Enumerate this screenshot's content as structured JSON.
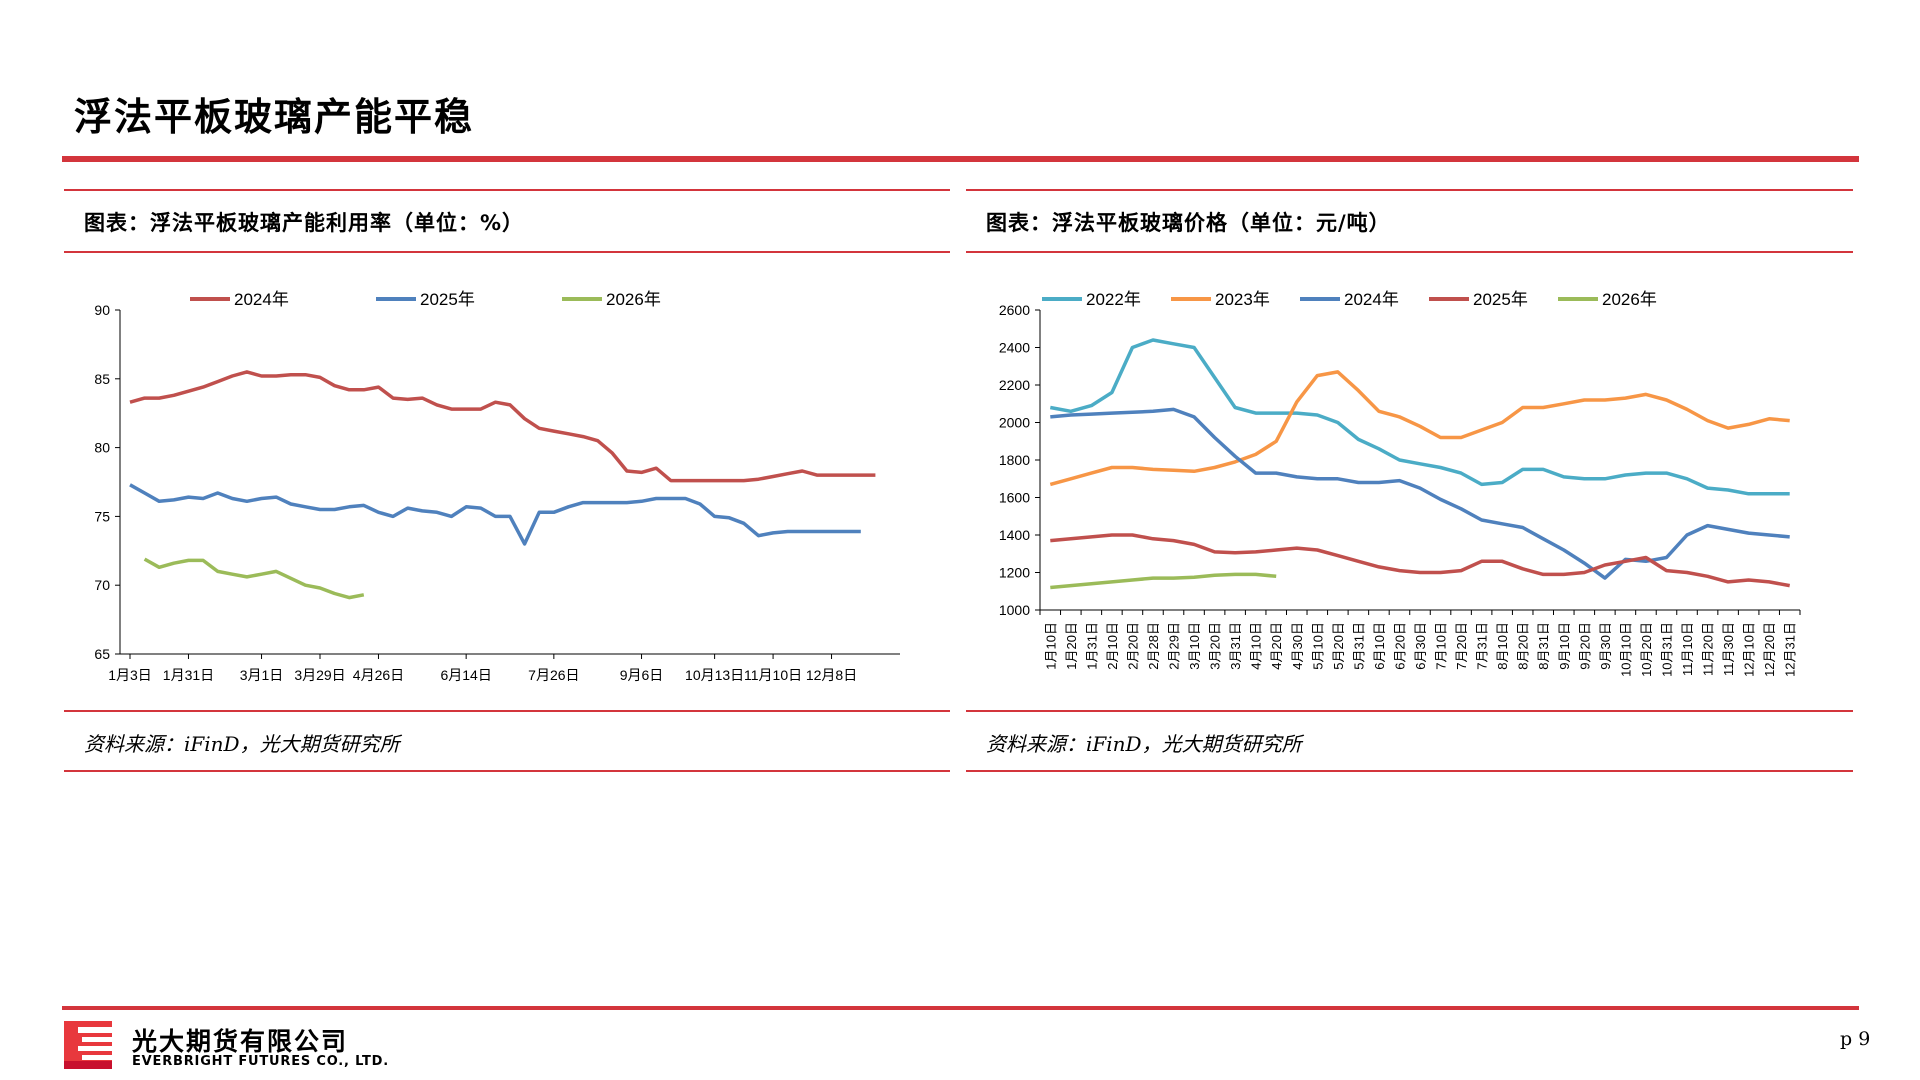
{
  "page": {
    "title": "浮法平板玻璃产能平稳",
    "page_number": "p 9",
    "accent_color": "#d3353c"
  },
  "company": {
    "name_cn": "光大期货有限公司",
    "name_en": "EVERBRIGHT FUTURES CO., LTD."
  },
  "panels": [
    {
      "heading": "图表：浮法平板玻璃产能利用率（单位：%）",
      "source": "资料来源：iFinD，光大期货研究所"
    },
    {
      "heading": "图表：浮法平板玻璃价格（单位：元/吨）",
      "source": "资料来源：iFinD，光大期货研究所"
    }
  ],
  "chart_data": [
    {
      "type": "line",
      "ylim": [
        65,
        90
      ],
      "yticks": [
        65,
        70,
        75,
        80,
        85,
        90
      ],
      "xlim": [
        0,
        52
      ],
      "xtick_labels": [
        "1月3日",
        "1月31日",
        "3月1日",
        "3月29日",
        "4月26日",
        "6月14日",
        "7月26日",
        "9月6日",
        "10月13日",
        "11月10日",
        "12月8日"
      ],
      "xtick_positions": [
        0,
        4,
        9,
        13,
        17,
        23,
        29,
        35,
        40,
        44,
        48
      ],
      "legend_position": "top",
      "grid": false,
      "series": [
        {
          "name": "2024年",
          "color": "#c0504d",
          "x": [
            0,
            1,
            2,
            3,
            4,
            5,
            6,
            7,
            8,
            9,
            10,
            11,
            12,
            13,
            14,
            15,
            16,
            17,
            18,
            19,
            20,
            21,
            22,
            23,
            24,
            25,
            26,
            27,
            28,
            29,
            30,
            31,
            32,
            33,
            34,
            35,
            36,
            37,
            38,
            39,
            40,
            41,
            42,
            43,
            44,
            45,
            46,
            47,
            48,
            49,
            50,
            51
          ],
          "values": [
            83.3,
            83.6,
            83.6,
            83.8,
            84.1,
            84.4,
            84.8,
            85.2,
            85.5,
            85.2,
            85.2,
            85.3,
            85.3,
            85.1,
            84.5,
            84.2,
            84.2,
            84.4,
            83.6,
            83.5,
            83.6,
            83.1,
            82.8,
            82.8,
            82.8,
            83.3,
            83.1,
            82.1,
            81.4,
            81.2,
            81.0,
            80.8,
            80.5,
            79.6,
            78.3,
            78.2,
            78.5,
            77.6,
            77.6,
            77.6,
            77.6,
            77.6,
            77.6,
            77.7,
            77.9,
            78.1,
            78.3,
            78.0,
            78.0,
            78.0,
            78.0,
            78.0
          ]
        },
        {
          "name": "2025年",
          "color": "#4f81bd",
          "x": [
            0,
            1,
            2,
            3,
            4,
            5,
            6,
            7,
            8,
            9,
            10,
            11,
            12,
            13,
            14,
            15,
            16,
            17,
            18,
            19,
            20,
            21,
            22,
            23,
            24,
            25,
            26,
            27,
            28,
            29,
            30,
            31,
            32,
            33,
            34,
            35,
            36,
            37,
            38,
            39,
            40,
            41,
            42,
            43,
            44,
            45,
            46,
            47,
            48,
            49,
            50
          ],
          "values": [
            77.3,
            76.7,
            76.1,
            76.2,
            76.4,
            76.3,
            76.7,
            76.3,
            76.1,
            76.3,
            76.4,
            75.9,
            75.7,
            75.5,
            75.5,
            75.7,
            75.8,
            75.3,
            75.0,
            75.6,
            75.4,
            75.3,
            75.0,
            75.7,
            75.6,
            75.0,
            75.0,
            73.0,
            75.3,
            75.3,
            75.7,
            76.0,
            76.0,
            76.0,
            76.0,
            76.1,
            76.3,
            76.3,
            76.3,
            75.9,
            75.0,
            74.9,
            74.5,
            73.6,
            73.8,
            73.9,
            73.9,
            73.9,
            73.9,
            73.9,
            73.9
          ]
        },
        {
          "name": "2026年",
          "color": "#9bbb59",
          "x": [
            1,
            2,
            3,
            4,
            5,
            6,
            7,
            8,
            9,
            10,
            11,
            12,
            13,
            14,
            15,
            16
          ],
          "values": [
            71.9,
            71.3,
            71.6,
            71.8,
            71.8,
            71.0,
            70.8,
            70.6,
            70.8,
            71.0,
            70.5,
            70.0,
            69.8,
            69.4,
            69.1,
            69.3
          ]
        }
      ]
    },
    {
      "type": "line",
      "ylim": [
        1000,
        2600
      ],
      "yticks": [
        1000,
        1200,
        1400,
        1600,
        1800,
        2000,
        2200,
        2400,
        2600
      ],
      "xtick_labels": [
        "1月10日",
        "1月20日",
        "1月31日",
        "2月10日",
        "2月20日",
        "2月28日",
        "2月29日",
        "3月10日",
        "3月20日",
        "3月31日",
        "4月10日",
        "4月20日",
        "4月30日",
        "5月10日",
        "5月20日",
        "5月31日",
        "6月10日",
        "6月20日",
        "6月30日",
        "7月10日",
        "7月20日",
        "7月31日",
        "8月10日",
        "8月20日",
        "8月31日",
        "9月10日",
        "9月20日",
        "9月30日",
        "10月10日",
        "10月20日",
        "10月31日",
        "11月10日",
        "11月20日",
        "11月30日",
        "12月10日",
        "12月20日",
        "12月31日"
      ],
      "legend_position": "top",
      "grid": false,
      "series": [
        {
          "name": "2022年",
          "color": "#4bacc6",
          "values": [
            2080,
            2060,
            2090,
            2160,
            2400,
            2440,
            2420,
            2400,
            2240,
            2080,
            2050,
            2050,
            2050,
            2040,
            2000,
            1910,
            1860,
            1800,
            1780,
            1760,
            1730,
            1670,
            1680,
            1750,
            1750,
            1710,
            1700,
            1700,
            1720,
            1730,
            1730,
            1700,
            1650,
            1640,
            1620,
            1620,
            1620
          ]
        },
        {
          "name": "2023年",
          "color": "#f79646",
          "values": [
            1670,
            1700,
            1730,
            1760,
            1760,
            1750,
            1745,
            1740,
            1760,
            1790,
            1830,
            1900,
            2110,
            2250,
            2270,
            2170,
            2060,
            2030,
            1980,
            1920,
            1920,
            1960,
            2000,
            2080,
            2080,
            2100,
            2120,
            2120,
            2130,
            2150,
            2120,
            2070,
            2010,
            1970,
            1990,
            2020,
            2010
          ]
        },
        {
          "name": "2024年",
          "color": "#4f81bd",
          "values": [
            2030,
            2040,
            2045,
            2050,
            2055,
            2060,
            2070,
            2030,
            1920,
            1820,
            1730,
            1730,
            1710,
            1700,
            1700,
            1680,
            1680,
            1690,
            1650,
            1590,
            1540,
            1480,
            1460,
            1440,
            1380,
            1320,
            1250,
            1170,
            1270,
            1260,
            1280,
            1400,
            1450,
            1430,
            1410,
            1400,
            1390
          ]
        },
        {
          "name": "2025年",
          "color": "#c0504d",
          "values": [
            1370,
            1380,
            1390,
            1400,
            1400,
            1380,
            1370,
            1350,
            1310,
            1305,
            1310,
            1320,
            1330,
            1320,
            1290,
            1260,
            1230,
            1210,
            1200,
            1200,
            1210,
            1260,
            1260,
            1220,
            1190,
            1190,
            1200,
            1240,
            1260,
            1280,
            1210,
            1200,
            1180,
            1150,
            1160,
            1150,
            1130
          ]
        },
        {
          "name": "2026年",
          "color": "#9bbb59",
          "values": [
            1120,
            1130,
            1140,
            1150,
            1160,
            1170,
            1170,
            1175,
            1185,
            1190,
            1190,
            1180
          ]
        }
      ]
    }
  ]
}
